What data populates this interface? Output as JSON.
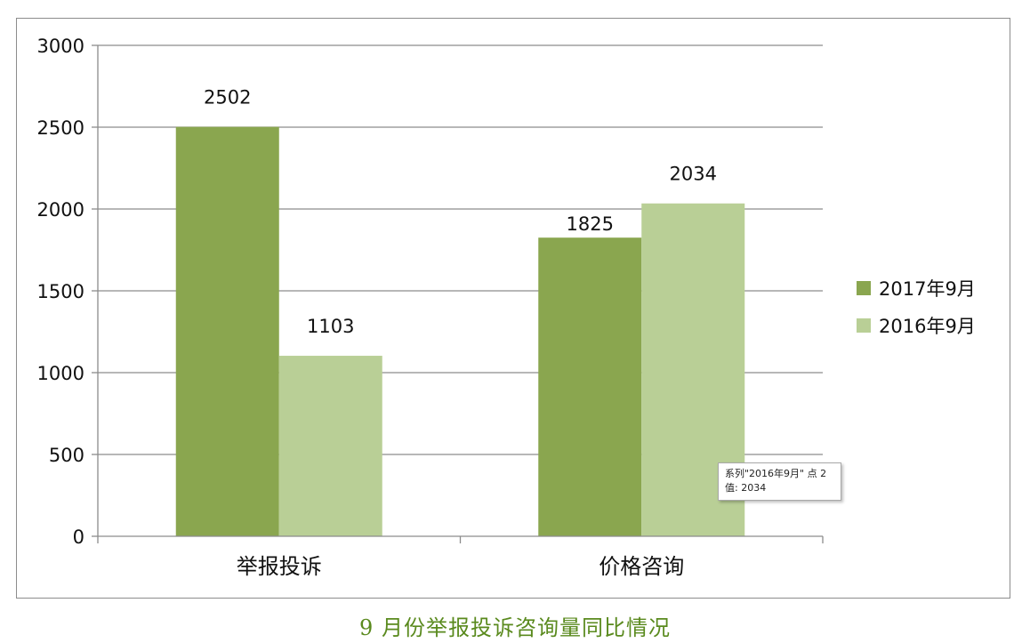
{
  "chart_data": {
    "type": "bar",
    "categories": [
      "举报投诉",
      "价格咨询"
    ],
    "series": [
      {
        "name": "2017年9月",
        "values": [
          2502,
          1825
        ],
        "color": "#8aa64f"
      },
      {
        "name": "2016年9月",
        "values": [
          1103,
          2034
        ],
        "color": "#b9cf96"
      }
    ],
    "ylim": [
      0,
      3000
    ],
    "yticks": [
      0,
      500,
      1000,
      1500,
      2000,
      2500,
      3000
    ],
    "grid": true,
    "legend": "right",
    "data_labels": true
  },
  "tooltip": {
    "line1": "系列\"2016年9月\" 点 2",
    "line2": "值: 2034"
  },
  "caption": "9 月份举报投诉咨询量同比情况"
}
